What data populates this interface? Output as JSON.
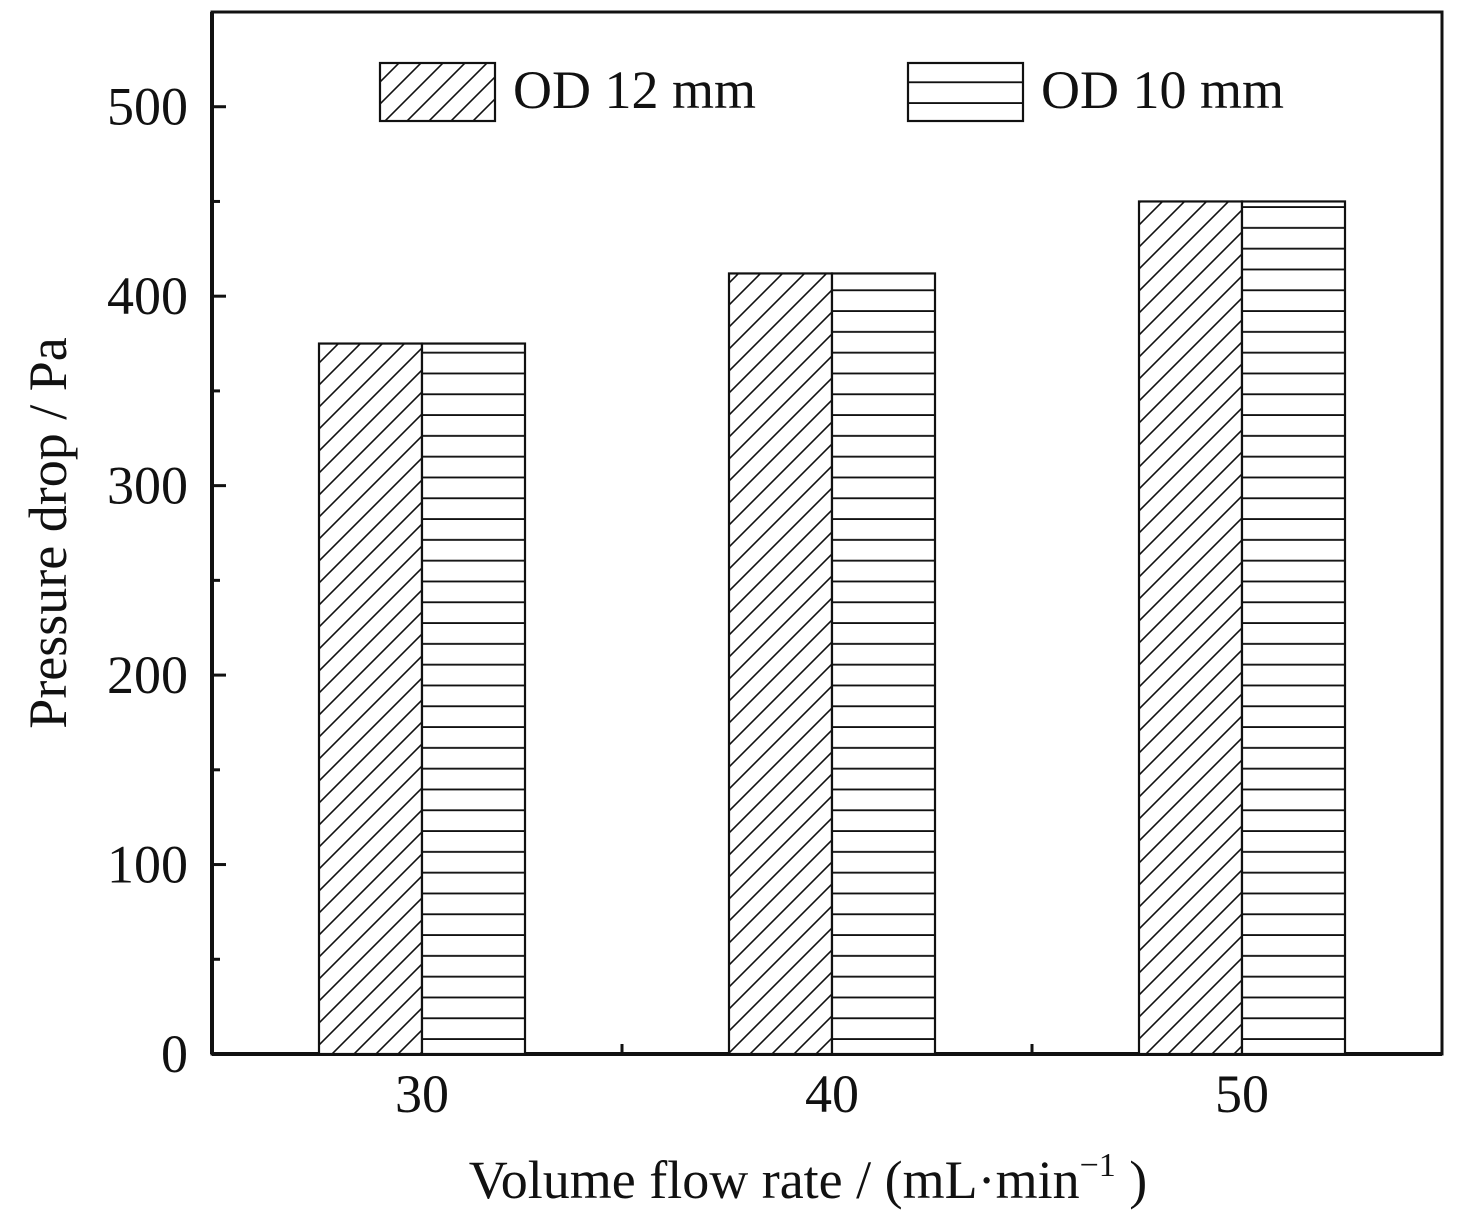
{
  "chart_data": {
    "type": "bar",
    "categories": [
      "30",
      "40",
      "50"
    ],
    "series": [
      {
        "name": "OD 12 mm",
        "values": [
          375,
          412,
          450
        ],
        "pattern": "diagonal-hatch"
      },
      {
        "name": "OD 10 mm",
        "values": [
          375,
          412,
          450
        ],
        "pattern": "horizontal-hatch"
      }
    ],
    "xlabel": "Volume flow rate / (mL·min",
    "xlabel_superscript": "−1",
    "xlabel_close": " )",
    "ylabel": "Pressure drop / Pa",
    "ylim": [
      0,
      550
    ],
    "yticks": [
      0,
      100,
      200,
      300,
      400,
      500
    ],
    "ytick_labels": [
      "0",
      "100",
      "200",
      "300",
      "400",
      "500"
    ],
    "legend_position": "top",
    "grid": false,
    "colors": {
      "line": "#111111",
      "background": "#ffffff"
    }
  }
}
